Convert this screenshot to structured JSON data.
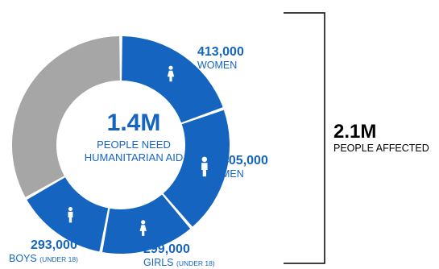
{
  "chart_data": {
    "type": "pie",
    "variant": "donut",
    "total": {
      "value": "1.4M",
      "label": "PEOPLE NEED HUMANITARIAN AID"
    },
    "affected": {
      "value": "2.1M",
      "label": "PEOPLE AFFECTED"
    },
    "slices": [
      {
        "key": "women",
        "value": 413000,
        "value_text": "413,000",
        "label": "WOMEN",
        "qualifier": ""
      },
      {
        "key": "men",
        "value": 405000,
        "value_text": "405,000",
        "label": "MEN",
        "qualifier": ""
      },
      {
        "key": "girls",
        "value": 299000,
        "value_text": "299,000",
        "label": "GIRLS",
        "qualifier": "(UNDER 18)"
      },
      {
        "key": "boys",
        "value": 293000,
        "value_text": "293,000",
        "label": "BOYS",
        "qualifier": "(UNDER 18)"
      },
      {
        "key": "remainder",
        "value": 700000,
        "value_text": "",
        "label": "",
        "qualifier": ""
      }
    ],
    "slice_icons": [
      "woman-icon",
      "man-icon",
      "girl-icon",
      "boy-icon"
    ],
    "colors": {
      "need": "#1565c0",
      "remainder": "#a6a6a6",
      "text": "#1565c0",
      "bracket": "#000000"
    }
  }
}
